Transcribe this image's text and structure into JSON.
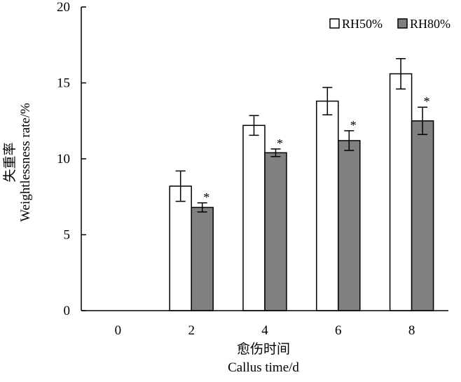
{
  "chart_data": {
    "type": "bar",
    "categories": [
      "0",
      "2",
      "4",
      "6",
      "8"
    ],
    "series": [
      {
        "name": "RH50%",
        "color": "#ffffff",
        "values": [
          0,
          8.2,
          12.2,
          13.8,
          15.6
        ],
        "errors": [
          0,
          1.0,
          0.65,
          0.9,
          1.0
        ],
        "significance": [
          "",
          "",
          "",
          "",
          ""
        ]
      },
      {
        "name": "RH80%",
        "color": "#808080",
        "values": [
          0,
          6.8,
          10.4,
          11.2,
          12.5
        ],
        "errors": [
          0,
          0.3,
          0.25,
          0.65,
          0.9
        ],
        "significance": [
          "",
          "*",
          "*",
          "*",
          "*"
        ]
      }
    ],
    "ylim": [
      0,
      20
    ],
    "yticks": [
      "0",
      "5",
      "10",
      "15",
      "20"
    ],
    "ylabel_cn": "失重率",
    "ylabel_en": "Weightlessness  rate/%",
    "xlabel_cn": "愈伤时间",
    "xlabel_en": "Callus  time/d",
    "legend_position": "top-right",
    "grid": false
  }
}
